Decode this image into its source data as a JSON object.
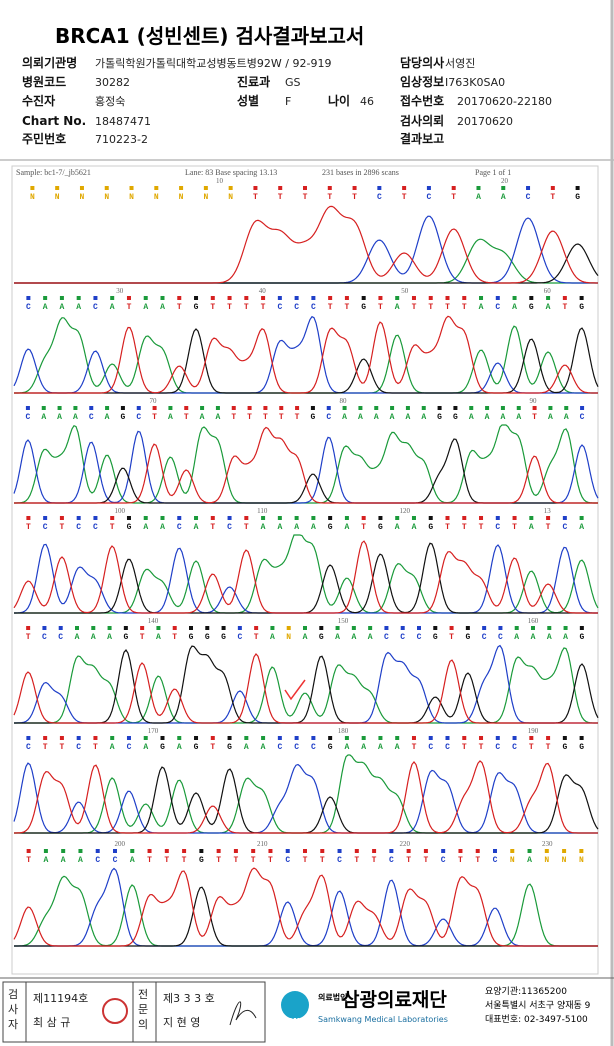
{
  "header": {
    "title": "BRCA1 (성빈센트) 검사결과보고서",
    "fields": [
      {
        "label": "의뢰기관명",
        "value": "가톨릭학원가톨릭대학교성병동트병92W / 92-919"
      },
      {
        "label": "담당의사",
        "value": "서영진"
      },
      {
        "label": "병원코드",
        "value": "30282"
      },
      {
        "label": "진료과",
        "value": "GS"
      },
      {
        "label": "임상정보",
        "value": "I763K0SA0"
      },
      {
        "label": "수진자",
        "value": "홍정숙"
      },
      {
        "label": "성별",
        "value": "F"
      },
      {
        "label": "나이",
        "value": "46"
      },
      {
        "label": "접수번호",
        "value": "20170620-22180"
      },
      {
        "label": "Chart No.",
        "value": "18487471"
      },
      {
        "label": "검사의뢰",
        "value": "20170620"
      },
      {
        "label": "주민번호",
        "value": "710223-2"
      },
      {
        "label": "결과보고",
        "value": null
      }
    ]
  },
  "trace": {
    "sample": "Sample: bc1-7/_jb5621",
    "lane": "Lane: 83   Base spacing 13.13",
    "bases_info": "231 bases in 2896 scans",
    "page": "Page 1 of 1",
    "rows": [
      {
        "bases": "NNNNNNNNNTTTTTCTCTAACTG",
        "positions": [
          "10",
          "20"
        ]
      },
      {
        "bases": "CAAACATAATGTTTTCCCTTGTATTTTACAGATG",
        "positions": [
          "30",
          "40",
          "50",
          "60"
        ]
      },
      {
        "bases": "CAAACAGCTATAATTTTTGCAAAAAAGGAAAATAAC",
        "positions": [
          "70",
          "80",
          "90"
        ]
      },
      {
        "bases": "TCTCCTGAACATCTAAAAGATGAAGTTTCTATCA",
        "positions": [
          "100",
          "110",
          "120",
          "13"
        ]
      },
      {
        "bases": "TCCAAAGTATGGGCTANAGAAACCCGTGCCAAAAG",
        "positions": [
          "140",
          "150",
          "160"
        ]
      },
      {
        "bases": "CTTCTACAGAGTGAACCCGAAAATCCTTCCTTGG",
        "positions": [
          "170",
          "180",
          "190"
        ]
      },
      {
        "bases": "TAAACCATTTGTTTTCTTCTTCTTCTTCNANNN",
        "positions": [
          "200",
          "210",
          "220",
          "230"
        ]
      }
    ]
  },
  "footer": {
    "examiner_title": "검사자",
    "examiner_no": "제11194호",
    "examiner_name": "최 삼 규",
    "specialist_title": "전문의",
    "specialist_no": "제3 3 3 호",
    "specialist_name": "지 현 영",
    "org_type": "의료법인",
    "org_name": "삼광의료재단",
    "org_english": "Samkwang Medical Laboratories",
    "logo": "SML",
    "code": "요양기관:11365200",
    "address": "서울특별시 서초구 양재동 9",
    "phone": "대표번호: 02-3497-5100"
  }
}
